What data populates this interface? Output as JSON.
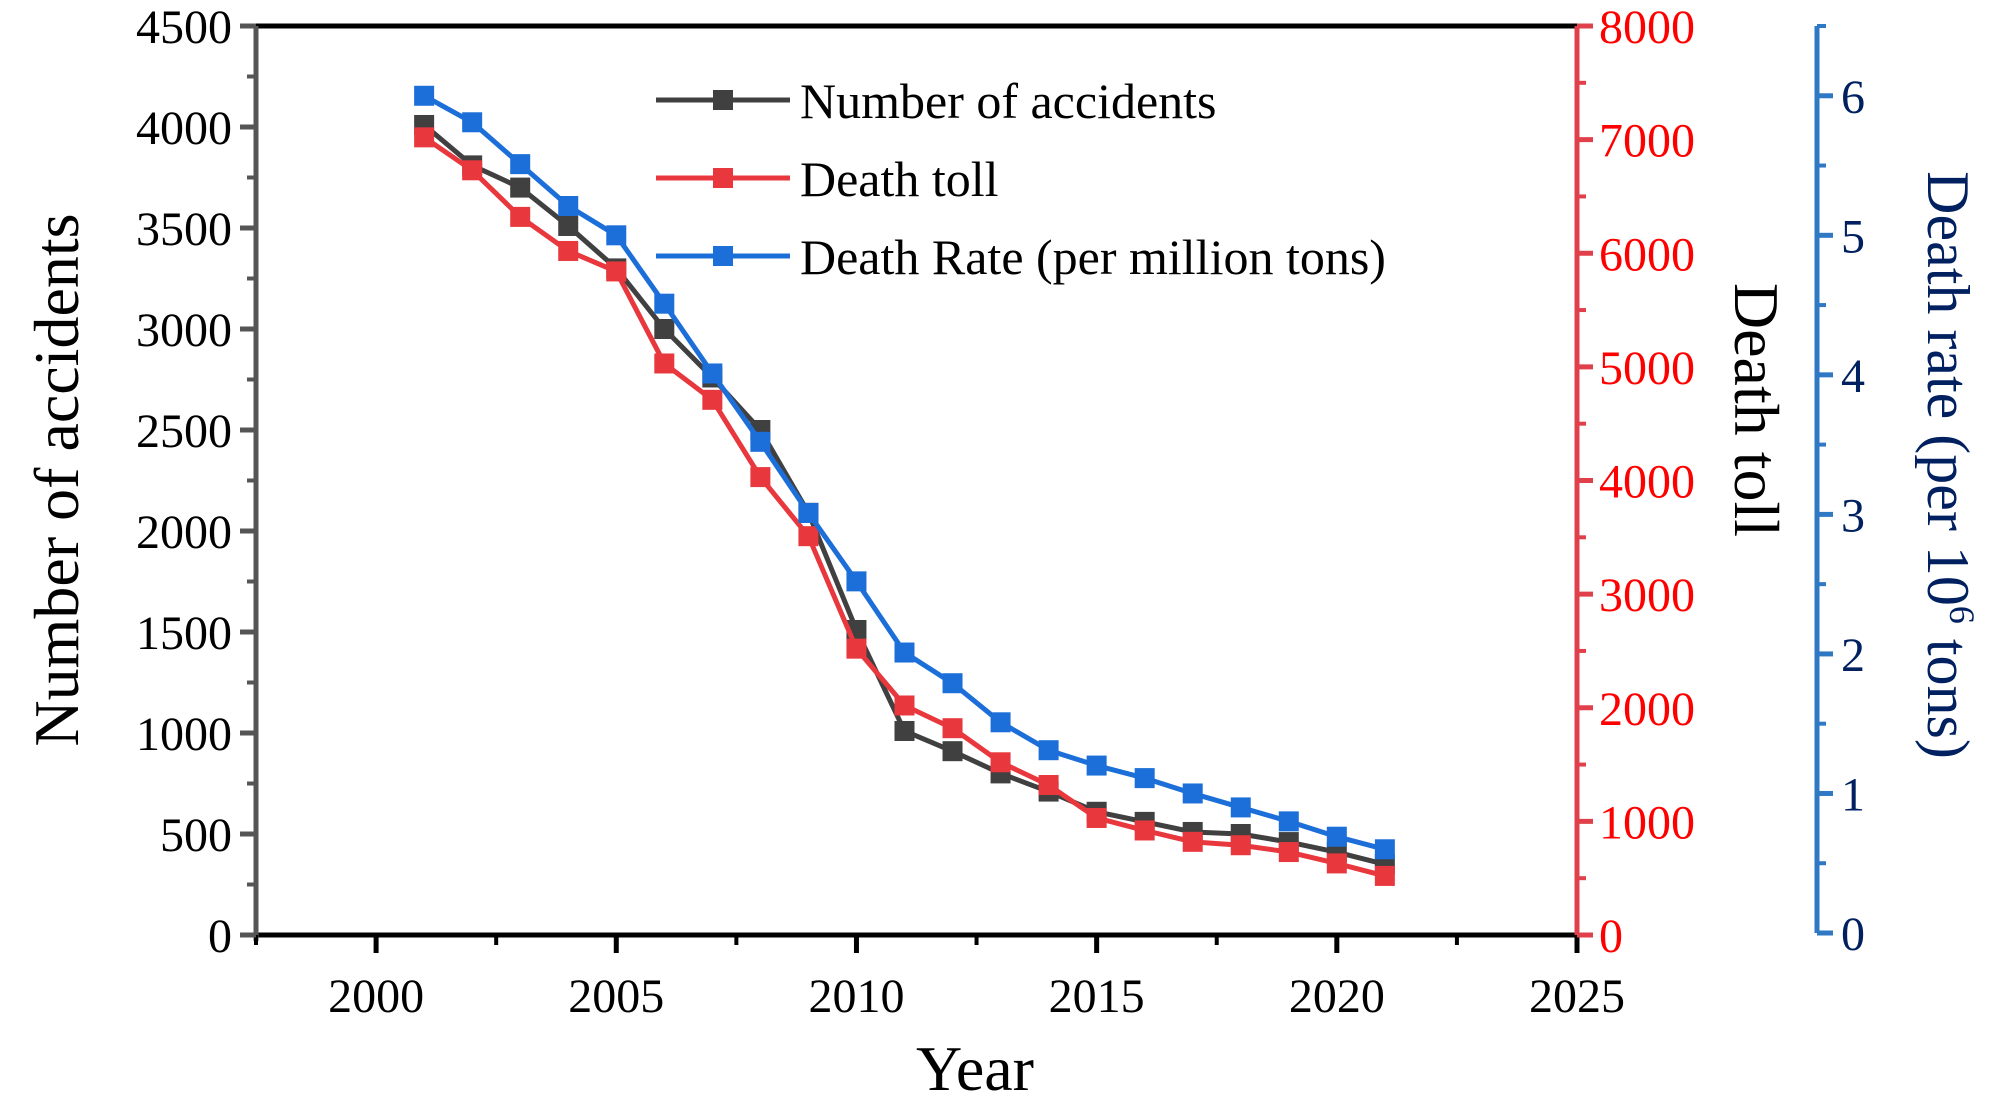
{
  "chart_data": {
    "type": "line",
    "title": "",
    "xlabel": "Year",
    "x": [
      2001,
      2002,
      2003,
      2004,
      2005,
      2006,
      2007,
      2008,
      2009,
      2010,
      2011,
      2012,
      2013,
      2014,
      2015,
      2016,
      2017,
      2018,
      2019,
      2020,
      2021
    ],
    "xlim": [
      1997.5,
      2025
    ],
    "xticks": [
      "2000",
      "2005",
      "2010",
      "2015",
      "2020",
      "2025"
    ],
    "xtick_values": [
      2000,
      2005,
      2010,
      2015,
      2020,
      2025
    ],
    "axes": {
      "left": {
        "label": "Number of accidents",
        "ylim": [
          0,
          4500
        ],
        "ticks": [
          "0",
          "500",
          "1000",
          "1500",
          "2000",
          "2500",
          "3000",
          "3500",
          "4000",
          "4500"
        ],
        "tick_values": [
          0,
          500,
          1000,
          1500,
          2000,
          2500,
          3000,
          3500,
          4000,
          4500
        ],
        "color": "#000000"
      },
      "right": {
        "label": "Death toll",
        "ylim": [
          0,
          8000
        ],
        "ticks": [
          "0",
          "1000",
          "2000",
          "3000",
          "4000",
          "5000",
          "6000",
          "7000",
          "8000"
        ],
        "tick_values": [
          0,
          1000,
          2000,
          3000,
          4000,
          5000,
          6000,
          7000,
          8000
        ],
        "color": "#ff0000",
        "axis_color": "#e0404a"
      },
      "right2": {
        "label_main": "Death rate (per 10",
        "label_sup": "6",
        "label_end": " tons)",
        "ylim": [
          0,
          6.5
        ],
        "ticks": [
          "0",
          "1",
          "2",
          "3",
          "4",
          "5",
          "6"
        ],
        "tick_values": [
          0,
          1,
          2,
          3,
          4,
          5,
          6
        ],
        "color": "#002060",
        "axis_color": "#2f78c4"
      }
    },
    "series": [
      {
        "name": "Number of accidents",
        "axis": "left",
        "color": "#404040",
        "values": [
          4010,
          3810,
          3700,
          3510,
          3300,
          3000,
          2760,
          2500,
          2090,
          1510,
          1010,
          910,
          800,
          710,
          610,
          560,
          510,
          500,
          460,
          410,
          350
        ]
      },
      {
        "name": "Death toll",
        "axis": "right",
        "color": "#e8383d",
        "values": [
          7020,
          6730,
          6320,
          6020,
          5840,
          5030,
          4710,
          4030,
          3510,
          2520,
          2020,
          1820,
          1520,
          1320,
          1030,
          920,
          820,
          790,
          730,
          630,
          520
        ]
      },
      {
        "name": "Death Rate (per million tons)",
        "axis": "right2",
        "color": "#1c6fd8",
        "values": [
          6.0,
          5.81,
          5.51,
          5.21,
          5.0,
          4.51,
          4.01,
          3.52,
          3.01,
          2.52,
          2.01,
          1.79,
          1.51,
          1.31,
          1.2,
          1.11,
          1.0,
          0.9,
          0.8,
          0.69,
          0.6
        ]
      }
    ],
    "legend": {
      "placement": "top-center",
      "entries": [
        "Number of accidents",
        "Death toll",
        "Death Rate (per million tons)"
      ]
    },
    "grid": false
  }
}
